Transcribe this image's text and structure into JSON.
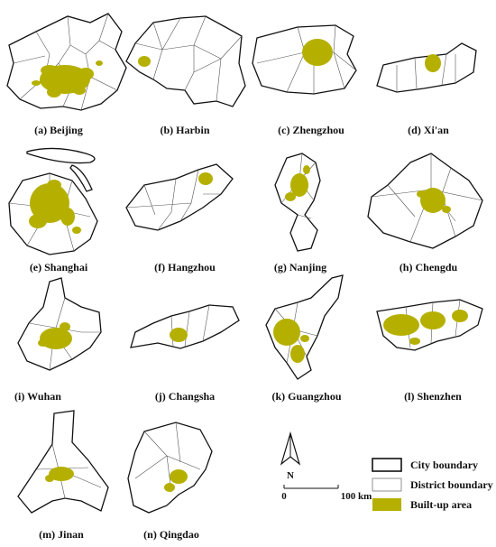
{
  "colors": {
    "built": "#b5b000",
    "city_boundary": "#111111",
    "district_boundary": "#777777"
  },
  "panels": [
    {
      "id": "beijing",
      "label": "(a) Beijing"
    },
    {
      "id": "harbin",
      "label": "(b) Harbin"
    },
    {
      "id": "zhengzhou",
      "label": "(c) Zhengzhou"
    },
    {
      "id": "xian",
      "label": "(d) Xi'an"
    },
    {
      "id": "shanghai",
      "label": "(e) Shanghai"
    },
    {
      "id": "hangzhou",
      "label": "(f) Hangzhou"
    },
    {
      "id": "nanjing",
      "label": "(g) Nanjing"
    },
    {
      "id": "chengdu",
      "label": "(h) Chengdu"
    },
    {
      "id": "wuhan",
      "label": "(i) Wuhan"
    },
    {
      "id": "changsha",
      "label": "(j) Changsha"
    },
    {
      "id": "guangzhou",
      "label": "(k) Guangzhou"
    },
    {
      "id": "shenzhen",
      "label": "(l) Shenzhen"
    },
    {
      "id": "jinan",
      "label": "(m) Jinan"
    },
    {
      "id": "qingdao",
      "label": "(n) Qingdao"
    }
  ],
  "north_arrow": {
    "label": "N"
  },
  "scale_bar": {
    "start_label": "0",
    "end_label": "100 km"
  },
  "legend": {
    "city_boundary": "City boundary",
    "district_boundary": "District boundary",
    "built_up": "Built-up area"
  }
}
